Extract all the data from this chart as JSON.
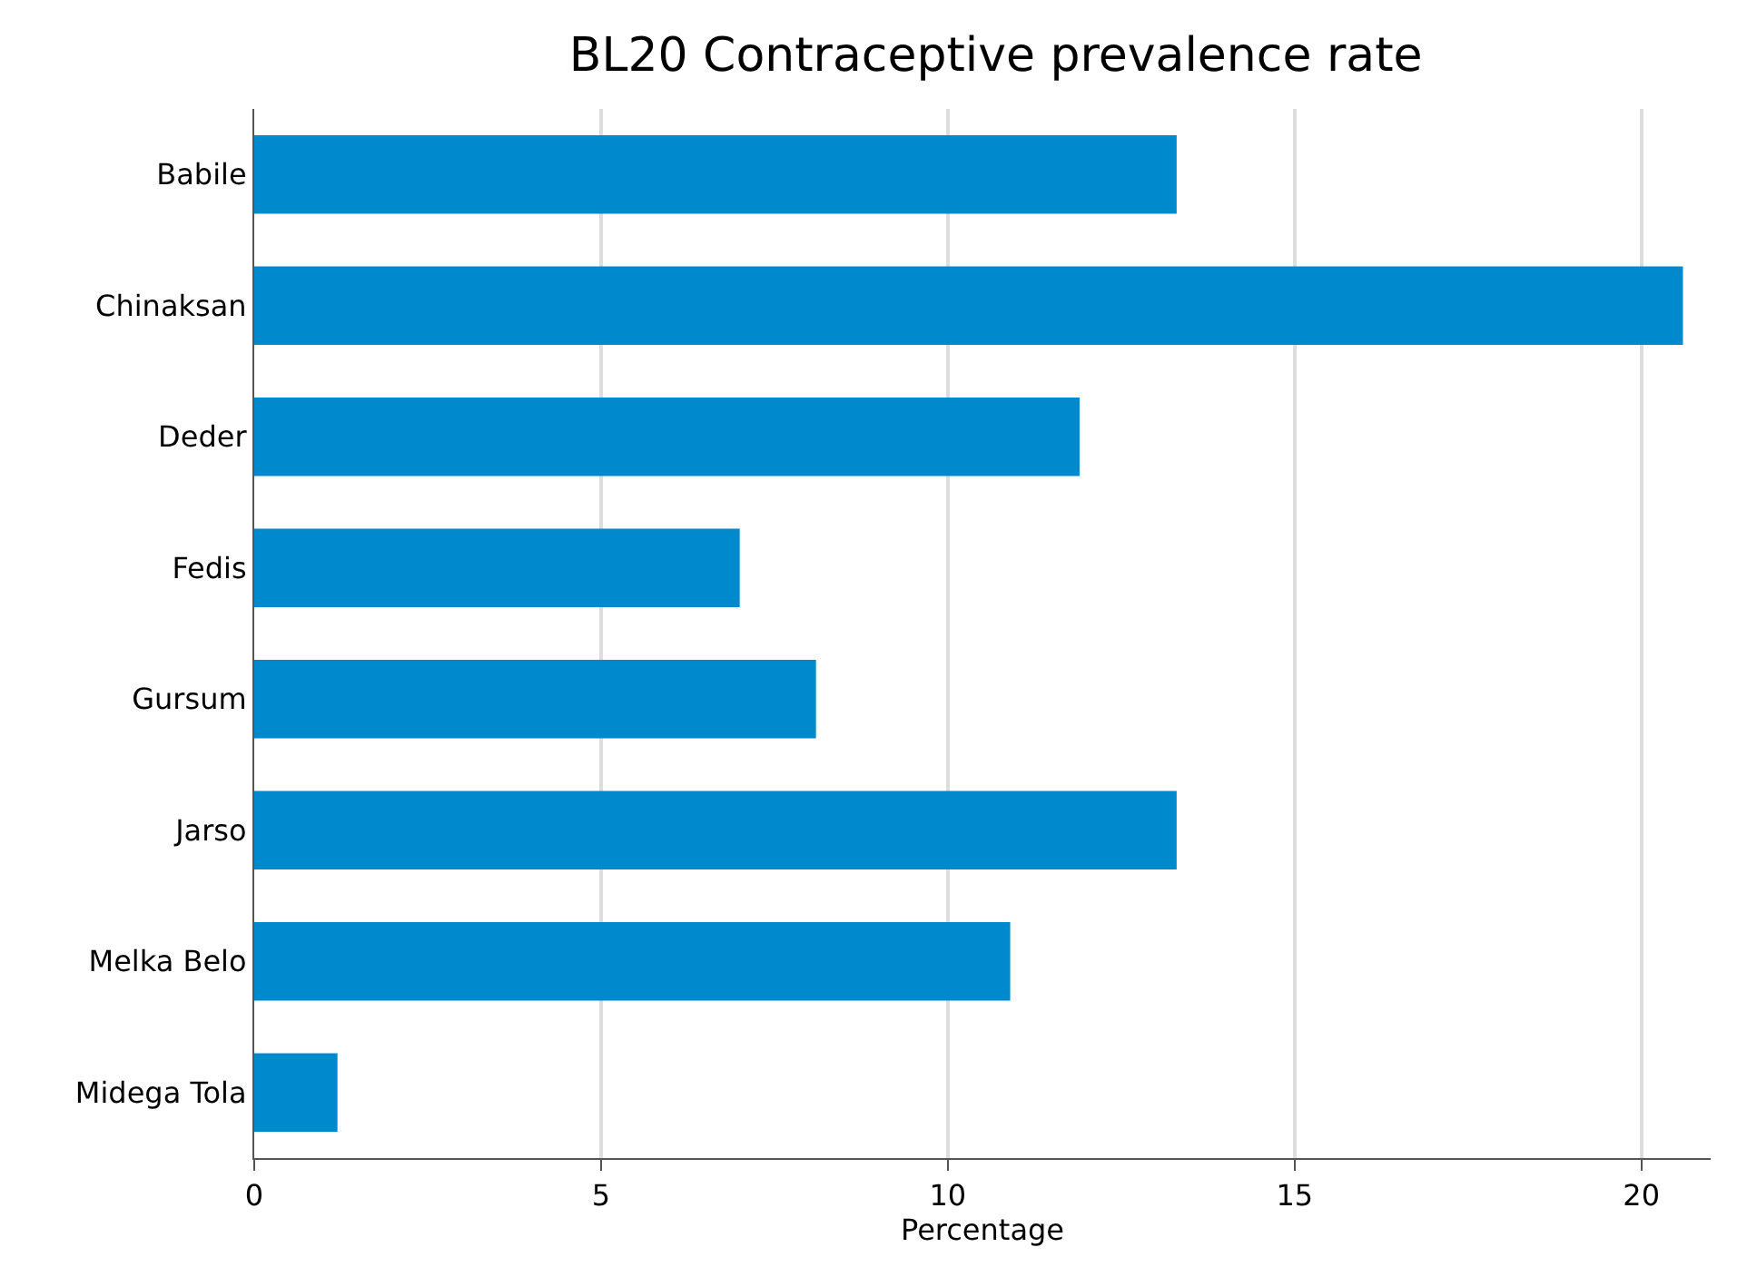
{
  "chart_data": {
    "type": "bar",
    "orientation": "horizontal",
    "title": "BL20 Contraceptive prevalence rate",
    "xlabel": "Percentage",
    "categories": [
      "Babile",
      "Chinaksan",
      "Deder",
      "Fedis",
      "Gursum",
      "Jarso",
      "Melka Belo",
      "Midega Tola"
    ],
    "values": [
      13.3,
      20.6,
      11.9,
      7.0,
      8.1,
      13.3,
      10.9,
      1.2
    ],
    "color": "#008acd",
    "xlim": [
      0,
      21
    ],
    "xticks": [
      0,
      5,
      10,
      15,
      20
    ],
    "grid": "x",
    "legend": false
  }
}
